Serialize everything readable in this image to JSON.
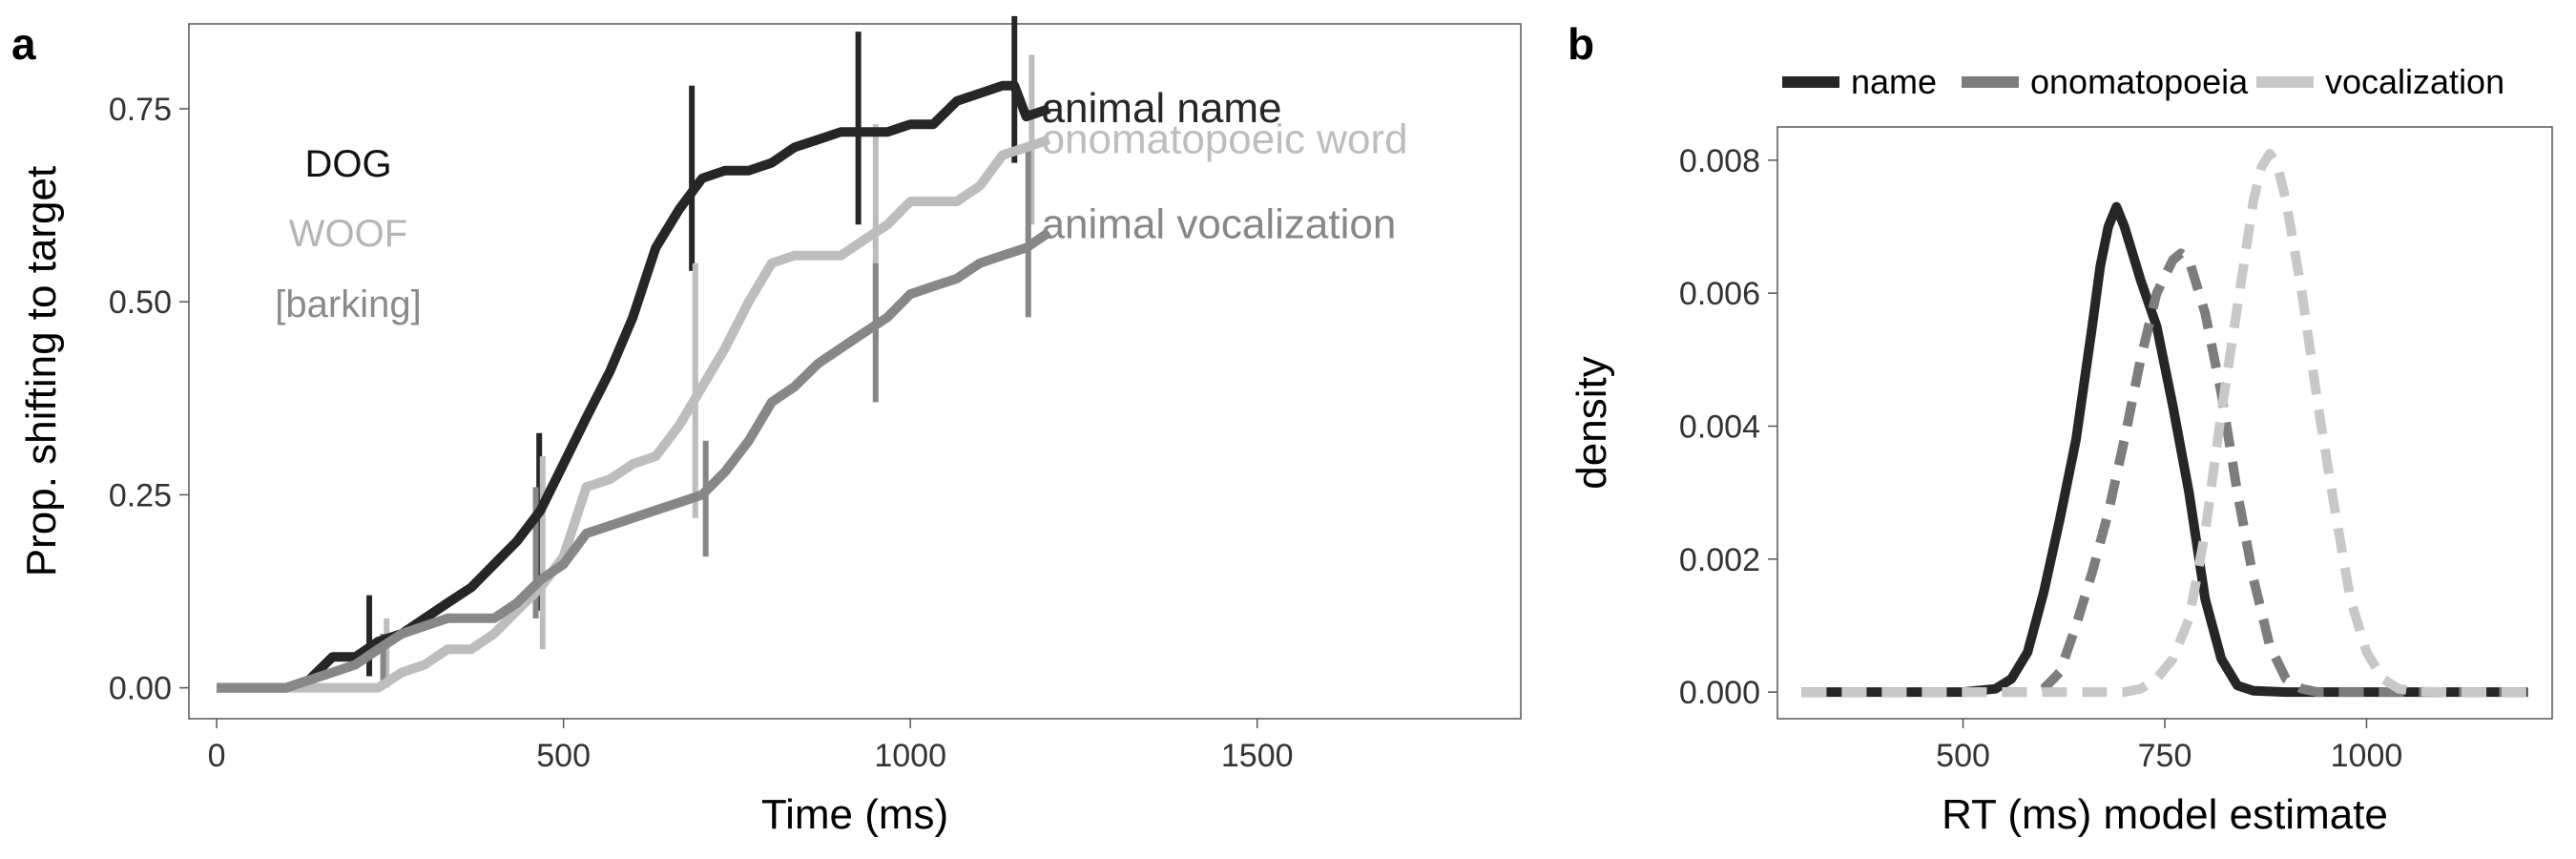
{
  "panels": {
    "a_label": "a",
    "b_label": "b"
  },
  "chart_data": [
    {
      "type": "line",
      "panel": "a",
      "title": "",
      "xlabel": "Time (ms)",
      "ylabel": "Prop. shifting to target",
      "xlim": [
        -40,
        1880
      ],
      "ylim": [
        -0.04,
        0.86
      ],
      "xticks": [
        0,
        500,
        1000,
        1500
      ],
      "yticks": [
        0,
        0.25,
        0.5,
        0.75
      ],
      "xtick_labels": [
        "0",
        "500",
        "1000",
        "1500"
      ],
      "ytick_labels": [
        "0.00",
        "0.25",
        "0.50",
        "0.75"
      ],
      "grid": false,
      "annotations": {
        "dog": "DOG",
        "woof": "WOOF",
        "barking": "[barking]"
      },
      "series": [
        {
          "name": "animal name",
          "color": "#262626",
          "x": [
            0,
            33,
            67,
            100,
            133,
            167,
            200,
            233,
            267,
            300,
            333,
            367,
            400,
            433,
            467,
            500,
            533,
            567,
            600,
            633,
            667,
            700,
            733,
            767,
            800,
            833,
            867,
            900,
            933,
            967,
            1000,
            1033,
            1067,
            1100,
            1133,
            1150,
            1167,
            1200
          ],
          "y": [
            0,
            0,
            0,
            0,
            0.01,
            0.04,
            0.04,
            0.06,
            0.07,
            0.09,
            0.11,
            0.13,
            0.16,
            0.19,
            0.23,
            0.29,
            0.35,
            0.41,
            0.48,
            0.57,
            0.62,
            0.66,
            0.67,
            0.67,
            0.68,
            0.7,
            0.71,
            0.72,
            0.72,
            0.72,
            0.73,
            0.73,
            0.76,
            0.77,
            0.78,
            0.78,
            0.74,
            0.75
          ],
          "error_bars": [
            {
              "x": 220,
              "low": 0.015,
              "high": 0.12
            },
            {
              "x": 465,
              "low": 0.1,
              "high": 0.33
            },
            {
              "x": 685,
              "low": 0.54,
              "high": 0.78
            },
            {
              "x": 925,
              "low": 0.6,
              "high": 0.85
            },
            {
              "x": 1150,
              "low": 0.68,
              "high": 0.87
            }
          ]
        },
        {
          "name": "onomatopoeic word",
          "color": "#bdbdbd",
          "x": [
            0,
            33,
            67,
            100,
            133,
            167,
            200,
            233,
            267,
            300,
            333,
            367,
            400,
            433,
            467,
            500,
            533,
            567,
            600,
            633,
            667,
            700,
            733,
            767,
            800,
            833,
            867,
            900,
            933,
            967,
            1000,
            1033,
            1067,
            1100,
            1133,
            1167,
            1200
          ],
          "y": [
            0,
            0,
            0,
            0,
            0,
            0,
            0,
            0,
            0.02,
            0.03,
            0.05,
            0.05,
            0.07,
            0.1,
            0.13,
            0.17,
            0.26,
            0.27,
            0.29,
            0.3,
            0.34,
            0.39,
            0.44,
            0.5,
            0.55,
            0.56,
            0.56,
            0.56,
            0.58,
            0.6,
            0.63,
            0.63,
            0.63,
            0.65,
            0.69,
            0.7,
            0.71
          ],
          "error_bars": [
            {
              "x": 245,
              "low": 0.0,
              "high": 0.09
            },
            {
              "x": 470,
              "low": 0.05,
              "high": 0.3
            },
            {
              "x": 690,
              "low": 0.22,
              "high": 0.55
            },
            {
              "x": 950,
              "low": 0.45,
              "high": 0.73
            },
            {
              "x": 1175,
              "low": 0.6,
              "high": 0.82
            }
          ]
        },
        {
          "name": "animal vocalization",
          "color": "#878787",
          "x": [
            0,
            33,
            67,
            100,
            133,
            167,
            200,
            233,
            267,
            300,
            333,
            367,
            400,
            433,
            467,
            500,
            533,
            567,
            600,
            633,
            667,
            700,
            733,
            767,
            800,
            833,
            867,
            900,
            933,
            967,
            1000,
            1033,
            1067,
            1100,
            1133,
            1167,
            1200
          ],
          "y": [
            0,
            0,
            0,
            0,
            0.01,
            0.02,
            0.03,
            0.05,
            0.07,
            0.08,
            0.09,
            0.09,
            0.09,
            0.11,
            0.14,
            0.16,
            0.2,
            0.21,
            0.22,
            0.23,
            0.24,
            0.25,
            0.28,
            0.32,
            0.37,
            0.39,
            0.42,
            0.44,
            0.46,
            0.48,
            0.51,
            0.52,
            0.53,
            0.55,
            0.56,
            0.57,
            0.59
          ],
          "error_bars": [
            {
              "x": 240,
              "low": 0.0,
              "high": 0.07
            },
            {
              "x": 460,
              "low": 0.09,
              "high": 0.26
            },
            {
              "x": 705,
              "low": 0.17,
              "high": 0.32
            },
            {
              "x": 950,
              "low": 0.37,
              "high": 0.55
            },
            {
              "x": 1170,
              "low": 0.48,
              "high": 0.7
            }
          ]
        }
      ]
    },
    {
      "type": "line",
      "panel": "b",
      "title": "",
      "xlabel": "RT (ms) model estimate",
      "ylabel": "density",
      "xlim": [
        270,
        1230
      ],
      "ylim": [
        -0.0004,
        0.0085
      ],
      "xticks": [
        500,
        750,
        1000
      ],
      "yticks": [
        0,
        0.002,
        0.004,
        0.006,
        0.008
      ],
      "xtick_labels": [
        "500",
        "750",
        "1000"
      ],
      "ytick_labels": [
        "0.000",
        "0.002",
        "0.004",
        "0.006",
        "0.008"
      ],
      "grid": false,
      "legend": {
        "position": "top",
        "entries": [
          "name",
          "onomatopoeia",
          "vocalization"
        ]
      },
      "series": [
        {
          "name": "name",
          "color": "#262626",
          "dash": "solid",
          "x": [
            300,
            500,
            540,
            560,
            580,
            600,
            620,
            640,
            660,
            670,
            680,
            690,
            700,
            710,
            720,
            740,
            760,
            780,
            800,
            820,
            840,
            860,
            900,
            1000,
            1200
          ],
          "y": [
            0,
            0,
            5e-05,
            0.0002,
            0.0006,
            0.0015,
            0.0026,
            0.0038,
            0.0055,
            0.0064,
            0.007,
            0.0073,
            0.007,
            0.0066,
            0.0062,
            0.0055,
            0.0043,
            0.003,
            0.0014,
            0.0005,
            0.0001,
            2e-05,
            0,
            0,
            0
          ]
        },
        {
          "name": "onomatopoeia",
          "color": "#7d7d7d",
          "dash": "dashed",
          "x": [
            300,
            580,
            600,
            620,
            640,
            660,
            680,
            700,
            720,
            740,
            760,
            770,
            780,
            800,
            820,
            840,
            860,
            880,
            900,
            920,
            940,
            1000,
            1200
          ],
          "y": [
            0,
            0,
            5e-05,
            0.0003,
            0.001,
            0.0018,
            0.0027,
            0.0038,
            0.005,
            0.006,
            0.0065,
            0.0066,
            0.0065,
            0.0057,
            0.0045,
            0.003,
            0.0017,
            0.0007,
            0.0002,
            5e-05,
            0,
            0,
            0
          ]
        },
        {
          "name": "vocalization",
          "color": "#c8c8c8",
          "dash": "dashed",
          "x": [
            300,
            700,
            720,
            740,
            760,
            780,
            800,
            820,
            840,
            860,
            870,
            880,
            890,
            900,
            920,
            940,
            960,
            980,
            1000,
            1020,
            1040,
            1060,
            1100,
            1200
          ],
          "y": [
            0,
            0,
            5e-05,
            0.0002,
            0.0005,
            0.0011,
            0.0024,
            0.0042,
            0.0058,
            0.0074,
            0.0079,
            0.0081,
            0.0079,
            0.0074,
            0.006,
            0.0043,
            0.0028,
            0.0014,
            0.0006,
            0.0002,
            5e-05,
            1e-05,
            0,
            0
          ]
        }
      ]
    }
  ]
}
